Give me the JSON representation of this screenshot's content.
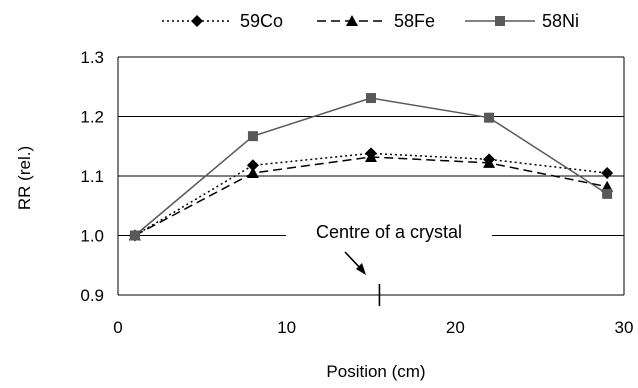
{
  "chart_data": {
    "type": "line",
    "title": "",
    "xlabel": "Position (cm)",
    "ylabel": "RR (rel.)",
    "xlim": [
      0,
      30
    ],
    "ylim": [
      0.9,
      1.3
    ],
    "xticks": [
      "0",
      "10",
      "20",
      "30"
    ],
    "yticks": [
      "0.9",
      "1.0",
      "1.1",
      "1.2",
      "1.3"
    ],
    "grid": "horizontal",
    "legend_position": "top",
    "x": [
      1,
      8,
      15,
      22,
      29
    ],
    "series": [
      {
        "name": "59Co",
        "values": [
          1.0,
          1.118,
          1.138,
          1.128,
          1.105
        ],
        "marker": "diamond",
        "dash": "dotted",
        "color": "#000000"
      },
      {
        "name": "58Fe",
        "values": [
          1.0,
          1.105,
          1.132,
          1.122,
          1.082
        ],
        "marker": "triangle",
        "dash": "dashed",
        "color": "#000000"
      },
      {
        "name": "58Ni",
        "values": [
          1.0,
          1.167,
          1.231,
          1.198,
          1.07
        ],
        "marker": "square",
        "dash": "solid",
        "color": "#595959"
      }
    ],
    "annotations": [
      {
        "text": "Centre of a crystal",
        "x": 15.5,
        "y": 0.9
      }
    ]
  }
}
